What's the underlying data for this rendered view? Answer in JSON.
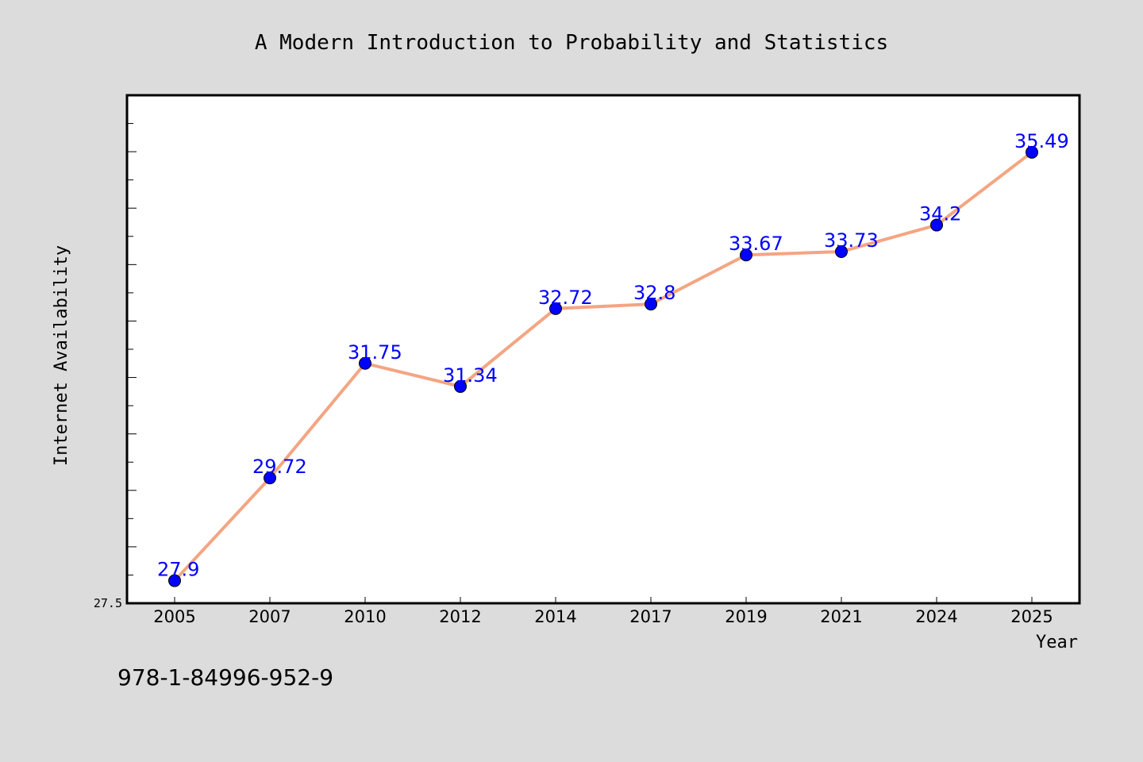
{
  "colors": {
    "background": "#dcdcdc",
    "plot_background": "#ffffff",
    "line": "#f4a582",
    "marker": "#0000ff",
    "data_label": "#0000ff"
  },
  "footnote": "978-1-84996-952-9",
  "chart_data": {
    "type": "line",
    "title": "A Modern Introduction to Probability and Statistics",
    "xlabel": "Year",
    "ylabel": "Internet Availability",
    "categories": [
      "2005",
      "2007",
      "2010",
      "2012",
      "2014",
      "2017",
      "2019",
      "2021",
      "2024",
      "2025"
    ],
    "values": [
      27.9,
      29.72,
      31.75,
      31.34,
      32.72,
      32.8,
      33.67,
      33.73,
      34.2,
      35.49
    ],
    "data_labels": [
      "27.9",
      "29.72",
      "31.75",
      "31.34",
      "32.72",
      "32.8",
      "33.67",
      "33.73",
      "34.2",
      "35.49"
    ],
    "y_tick_labels": [
      "27.5"
    ],
    "ylim": [
      27.5,
      36.5
    ],
    "grid": false,
    "legend": "none"
  }
}
